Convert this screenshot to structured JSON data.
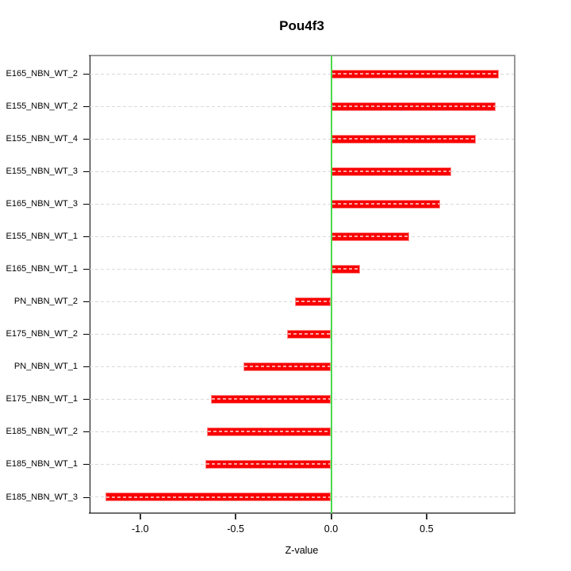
{
  "chart_data": {
    "type": "bar",
    "orientation": "horizontal",
    "title": "Pou4f3",
    "xlabel": "Z-value",
    "ylabel": "",
    "categories": [
      "E165_NBN_WT_2",
      "E155_NBN_WT_2",
      "E155_NBN_WT_4",
      "E155_NBN_WT_3",
      "E165_NBN_WT_3",
      "E155_NBN_WT_1",
      "E165_NBN_WT_1",
      "PN_NBN_WT_2",
      "E175_NBN_WT_2",
      "PN_NBN_WT_1",
      "E175_NBN_WT_1",
      "E185_NBN_WT_2",
      "E185_NBN_WT_1",
      "E185_NBN_WT_3"
    ],
    "values": [
      0.88,
      0.86,
      0.76,
      0.63,
      0.57,
      0.41,
      0.15,
      -0.19,
      -0.23,
      -0.46,
      -0.63,
      -0.65,
      -0.66,
      -1.18
    ],
    "x_ticks": [
      {
        "value": -1.0,
        "label": "-1.0"
      },
      {
        "value": -0.5,
        "label": "-0.5"
      },
      {
        "value": 0.0,
        "label": "0.0"
      },
      {
        "value": 0.5,
        "label": "0.5"
      }
    ],
    "xlim": [
      -1.27,
      0.96
    ],
    "grid": "horizontal-dashed-per-category",
    "legend": "none",
    "colors": {
      "bar": "#f80000",
      "bar_dash_overlay": "rgba(255,255,255,0.65)",
      "gridline": "#d9d9d9",
      "zero_line": "#4cd94c",
      "frame": "#989898",
      "axis": "#000000",
      "background": "#ffffff"
    }
  }
}
